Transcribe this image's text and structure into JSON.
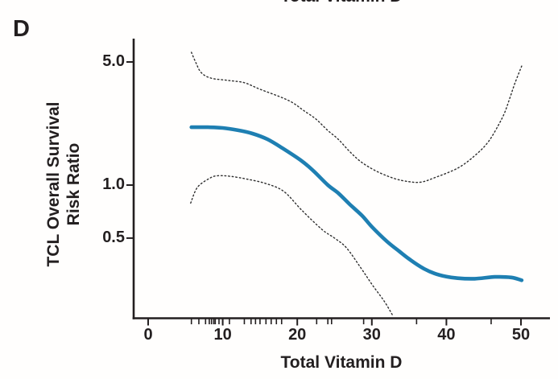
{
  "panel_label": "D",
  "top_title_clipped": "Total Vitamin D",
  "colors": {
    "estimate_line": "#1e7fb2",
    "ci_line": "#2e2e2e",
    "axis": "#231f20",
    "background": "#fffefd"
  },
  "chart_data": {
    "type": "line",
    "title": "",
    "xlabel": "Total Vitamin D",
    "ylabel": "TCL Overall Survival Risk Ratio",
    "ylabel_lines": [
      "TCL Overall Survival",
      "Risk Ratio"
    ],
    "y_scale": "log",
    "xlim": [
      -2,
      53.8
    ],
    "ylim": [
      0.176,
      6.8
    ],
    "grid": false,
    "legend": "none",
    "x_ticks": [
      0,
      10,
      20,
      30,
      40,
      50
    ],
    "x_tick_labels": [
      "0",
      "10",
      "20",
      "30",
      "40",
      "50"
    ],
    "y_ticks": [
      5.0,
      1.0,
      0.5
    ],
    "y_tick_labels": [
      "5.0",
      "1.0",
      "0.5"
    ],
    "rug_x": [
      5.8,
      6.8,
      7.7,
      8.2,
      8.5,
      8.8,
      9.0,
      9.5,
      10.0,
      10.9,
      12.9,
      13.8,
      14.4,
      15.0,
      15.8,
      16.5,
      17.2,
      17.9,
      22.6,
      24.1,
      24.6,
      28.9,
      36.0,
      46.0
    ],
    "series": [
      {
        "name": "risk-ratio-estimate",
        "style": "solid",
        "color": "#1e7fb2",
        "width": 4.6,
        "points": [
          [
            5.8,
            2.13
          ],
          [
            8.0,
            2.13
          ],
          [
            10.0,
            2.11
          ],
          [
            12.0,
            2.05
          ],
          [
            14.0,
            1.96
          ],
          [
            16.0,
            1.82
          ],
          [
            18.0,
            1.62
          ],
          [
            20.6,
            1.37
          ],
          [
            22.2,
            1.2
          ],
          [
            24.1,
            1.0
          ],
          [
            25.5,
            0.9
          ],
          [
            27.0,
            0.78
          ],
          [
            28.7,
            0.67
          ],
          [
            30.0,
            0.58
          ],
          [
            32.0,
            0.48
          ],
          [
            33.7,
            0.42
          ],
          [
            35.2,
            0.375
          ],
          [
            37.0,
            0.335
          ],
          [
            38.4,
            0.315
          ],
          [
            40.0,
            0.302
          ],
          [
            41.5,
            0.296
          ],
          [
            43.8,
            0.294
          ],
          [
            46.5,
            0.301
          ],
          [
            48.7,
            0.299
          ],
          [
            50.1,
            0.288
          ]
        ]
      },
      {
        "name": "upper-confidence-band",
        "style": "dotted",
        "color": "#2e2e2e",
        "width": 1.4,
        "points": [
          [
            5.8,
            5.67
          ],
          [
            6.4,
            4.95
          ],
          [
            7.1,
            4.36
          ],
          [
            8.4,
            4.05
          ],
          [
            10.7,
            3.93
          ],
          [
            12.9,
            3.81
          ],
          [
            15.0,
            3.5
          ],
          [
            17.6,
            3.18
          ],
          [
            19.3,
            2.95
          ],
          [
            20.8,
            2.66
          ],
          [
            22.5,
            2.37
          ],
          [
            24.1,
            2.04
          ],
          [
            25.5,
            1.82
          ],
          [
            26.9,
            1.57
          ],
          [
            28.5,
            1.36
          ],
          [
            30.6,
            1.2
          ],
          [
            33.0,
            1.09
          ],
          [
            35.0,
            1.045
          ],
          [
            36.6,
            1.04
          ],
          [
            38.4,
            1.1
          ],
          [
            41.7,
            1.26
          ],
          [
            44.2,
            1.52
          ],
          [
            45.7,
            1.78
          ],
          [
            46.9,
            2.16
          ],
          [
            47.8,
            2.57
          ],
          [
            48.5,
            3.11
          ],
          [
            49.2,
            3.8
          ],
          [
            50.1,
            4.74
          ]
        ]
      },
      {
        "name": "lower-confidence-band",
        "style": "dotted",
        "color": "#2e2e2e",
        "width": 1.4,
        "points": [
          [
            5.7,
            0.79
          ],
          [
            6.6,
            0.97
          ],
          [
            8.2,
            1.09
          ],
          [
            9.3,
            1.13
          ],
          [
            11.1,
            1.12
          ],
          [
            13.3,
            1.08
          ],
          [
            15.8,
            1.02
          ],
          [
            18.2,
            0.92
          ],
          [
            20.6,
            0.72
          ],
          [
            23.3,
            0.56
          ],
          [
            25.0,
            0.5
          ],
          [
            26.6,
            0.44
          ],
          [
            28.5,
            0.34
          ],
          [
            30.1,
            0.27
          ],
          [
            31.7,
            0.218
          ],
          [
            32.8,
            0.182
          ]
        ]
      }
    ]
  }
}
